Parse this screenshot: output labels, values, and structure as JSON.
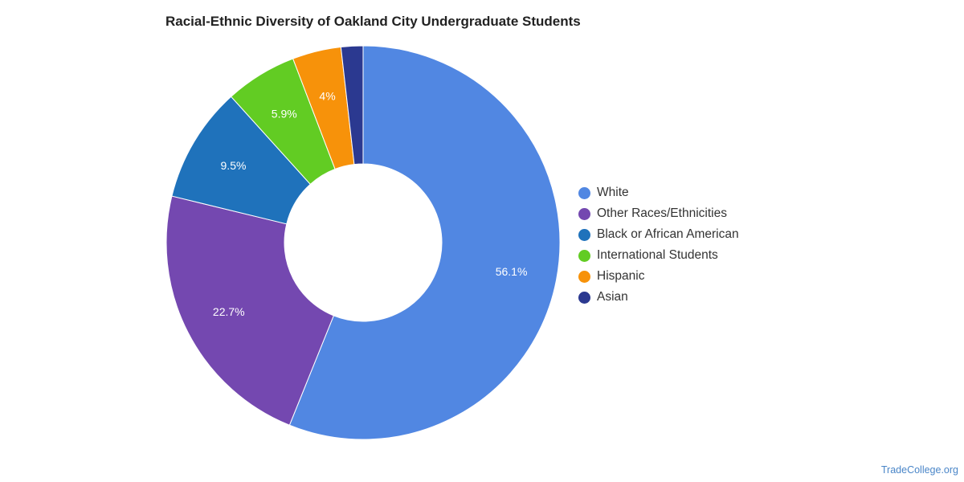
{
  "chart_data": {
    "type": "pie",
    "title": "Racial-Ethnic Diversity of Oakland City Undergraduate Students",
    "legend_position": "right",
    "series": [
      {
        "name": "White",
        "value": 56.1,
        "label": "56.1%",
        "color": "#5187e2"
      },
      {
        "name": "Other Races/Ethnicities",
        "value": 22.7,
        "label": "22.7%",
        "color": "#7448b0"
      },
      {
        "name": "Black or African American",
        "value": 9.5,
        "label": "9.5%",
        "color": "#1f72bb"
      },
      {
        "name": "International Students",
        "value": 5.9,
        "label": "5.9%",
        "color": "#62cc23"
      },
      {
        "name": "Hispanic",
        "value": 4.0,
        "label": "4%",
        "color": "#f7920a"
      },
      {
        "name": "Asian",
        "value": 1.8,
        "label": "",
        "color": "#2b3990"
      }
    ]
  },
  "footer": {
    "source": "TradeCollege.org"
  }
}
